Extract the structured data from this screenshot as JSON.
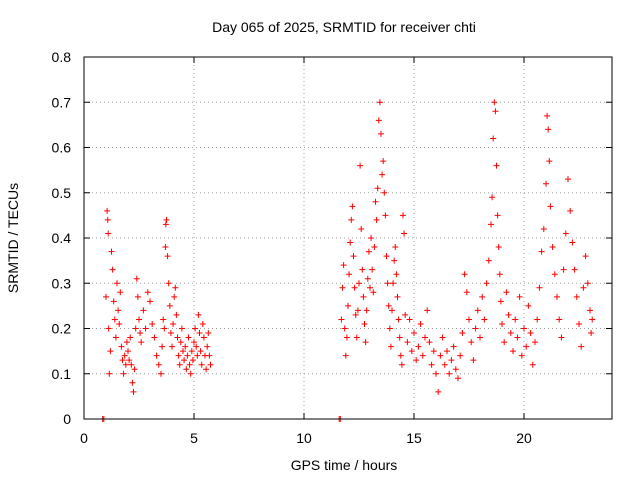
{
  "chart_data": {
    "type": "scatter",
    "title": "Day 065 of 2025, SRMTID for receiver chti",
    "xlabel": "GPS time / hours",
    "ylabel": "SRMTID / TECUs",
    "xlim": [
      0,
      24
    ],
    "ylim": [
      0,
      0.8
    ],
    "xticks": [
      0,
      5,
      10,
      15,
      20
    ],
    "yticks": [
      0,
      0.1,
      0.2,
      0.3,
      0.4,
      0.5,
      0.6,
      0.7,
      0.8
    ],
    "xtick_labels": [
      "0",
      "5",
      "10",
      "15",
      "20"
    ],
    "ytick_labels": [
      "0",
      "0.1",
      "0.2",
      "0.3",
      "0.4",
      "0.5",
      "0.6",
      "0.7",
      "0.8"
    ],
    "grid": true,
    "marker": "+",
    "color": "#ff0000",
    "series": [
      {
        "name": "SRMTID",
        "points": [
          [
            0.85,
            0.0
          ],
          [
            0.9,
            0.0
          ],
          [
            1.0,
            0.27
          ],
          [
            1.05,
            0.46
          ],
          [
            1.08,
            0.44
          ],
          [
            1.1,
            0.41
          ],
          [
            1.12,
            0.2
          ],
          [
            1.15,
            0.1
          ],
          [
            1.2,
            0.15
          ],
          [
            1.25,
            0.37
          ],
          [
            1.3,
            0.33
          ],
          [
            1.35,
            0.26
          ],
          [
            1.4,
            0.22
          ],
          [
            1.45,
            0.18
          ],
          [
            1.5,
            0.3
          ],
          [
            1.55,
            0.24
          ],
          [
            1.6,
            0.21
          ],
          [
            1.65,
            0.28
          ],
          [
            1.7,
            0.16
          ],
          [
            1.75,
            0.13
          ],
          [
            1.8,
            0.1
          ],
          [
            1.85,
            0.14
          ],
          [
            1.9,
            0.12
          ],
          [
            1.95,
            0.17
          ],
          [
            2.0,
            0.15
          ],
          [
            2.05,
            0.13
          ],
          [
            2.1,
            0.18
          ],
          [
            2.15,
            0.12
          ],
          [
            2.2,
            0.08
          ],
          [
            2.25,
            0.06
          ],
          [
            2.3,
            0.11
          ],
          [
            2.35,
            0.2
          ],
          [
            2.4,
            0.31
          ],
          [
            2.45,
            0.27
          ],
          [
            2.5,
            0.22
          ],
          [
            2.55,
            0.19
          ],
          [
            2.6,
            0.17
          ],
          [
            2.7,
            0.24
          ],
          [
            2.8,
            0.2
          ],
          [
            2.9,
            0.28
          ],
          [
            3.0,
            0.26
          ],
          [
            3.1,
            0.21
          ],
          [
            3.2,
            0.18
          ],
          [
            3.3,
            0.14
          ],
          [
            3.4,
            0.12
          ],
          [
            3.5,
            0.1
          ],
          [
            3.55,
            0.16
          ],
          [
            3.6,
            0.22
          ],
          [
            3.65,
            0.2
          ],
          [
            3.7,
            0.38
          ],
          [
            3.72,
            0.43
          ],
          [
            3.75,
            0.44
          ],
          [
            3.8,
            0.36
          ],
          [
            3.85,
            0.3
          ],
          [
            3.9,
            0.25
          ],
          [
            3.95,
            0.19
          ],
          [
            4.0,
            0.16
          ],
          [
            4.05,
            0.21
          ],
          [
            4.1,
            0.27
          ],
          [
            4.15,
            0.29
          ],
          [
            4.2,
            0.23
          ],
          [
            4.25,
            0.18
          ],
          [
            4.3,
            0.14
          ],
          [
            4.35,
            0.12
          ],
          [
            4.4,
            0.17
          ],
          [
            4.45,
            0.2
          ],
          [
            4.5,
            0.15
          ],
          [
            4.55,
            0.13
          ],
          [
            4.6,
            0.16
          ],
          [
            4.65,
            0.11
          ],
          [
            4.7,
            0.14
          ],
          [
            4.75,
            0.18
          ],
          [
            4.8,
            0.12
          ],
          [
            4.85,
            0.1
          ],
          [
            4.9,
            0.15
          ],
          [
            4.95,
            0.13
          ],
          [
            5.0,
            0.17
          ],
          [
            5.05,
            0.2
          ],
          [
            5.1,
            0.16
          ],
          [
            5.15,
            0.14
          ],
          [
            5.2,
            0.23
          ],
          [
            5.25,
            0.19
          ],
          [
            5.3,
            0.15
          ],
          [
            5.35,
            0.12
          ],
          [
            5.4,
            0.21
          ],
          [
            5.45,
            0.18
          ],
          [
            5.5,
            0.14
          ],
          [
            5.55,
            0.11
          ],
          [
            5.6,
            0.16
          ],
          [
            5.65,
            0.19
          ],
          [
            5.7,
            0.14
          ],
          [
            5.75,
            0.12
          ],
          [
            11.6,
            0.0
          ],
          [
            11.65,
            0.0
          ],
          [
            11.7,
            0.22
          ],
          [
            11.75,
            0.29
          ],
          [
            11.8,
            0.34
          ],
          [
            11.85,
            0.2
          ],
          [
            11.9,
            0.14
          ],
          [
            11.95,
            0.18
          ],
          [
            12.0,
            0.25
          ],
          [
            12.05,
            0.32
          ],
          [
            12.1,
            0.39
          ],
          [
            12.15,
            0.44
          ],
          [
            12.2,
            0.47
          ],
          [
            12.25,
            0.36
          ],
          [
            12.3,
            0.29
          ],
          [
            12.35,
            0.23
          ],
          [
            12.4,
            0.18
          ],
          [
            12.45,
            0.24
          ],
          [
            12.5,
            0.3
          ],
          [
            12.55,
            0.56
          ],
          [
            12.6,
            0.42
          ],
          [
            12.65,
            0.33
          ],
          [
            12.7,
            0.27
          ],
          [
            12.75,
            0.21
          ],
          [
            12.8,
            0.17
          ],
          [
            12.85,
            0.24
          ],
          [
            12.9,
            0.31
          ],
          [
            12.95,
            0.37
          ],
          [
            13.0,
            0.29
          ],
          [
            13.05,
            0.4
          ],
          [
            13.1,
            0.33
          ],
          [
            13.15,
            0.28
          ],
          [
            13.2,
            0.38
          ],
          [
            13.25,
            0.48
          ],
          [
            13.3,
            0.44
          ],
          [
            13.35,
            0.51
          ],
          [
            13.4,
            0.66
          ],
          [
            13.45,
            0.7
          ],
          [
            13.5,
            0.63
          ],
          [
            13.55,
            0.54
          ],
          [
            13.6,
            0.57
          ],
          [
            13.65,
            0.5
          ],
          [
            13.7,
            0.45
          ],
          [
            13.75,
            0.36
          ],
          [
            13.8,
            0.3
          ],
          [
            13.85,
            0.25
          ],
          [
            13.9,
            0.2
          ],
          [
            13.95,
            0.16
          ],
          [
            14.0,
            0.24
          ],
          [
            14.05,
            0.3
          ],
          [
            14.1,
            0.35
          ],
          [
            14.15,
            0.38
          ],
          [
            14.2,
            0.32
          ],
          [
            14.25,
            0.27
          ],
          [
            14.3,
            0.22
          ],
          [
            14.35,
            0.18
          ],
          [
            14.4,
            0.14
          ],
          [
            14.45,
            0.12
          ],
          [
            14.5,
            0.45
          ],
          [
            14.55,
            0.41
          ],
          [
            14.6,
            0.23
          ],
          [
            14.7,
            0.17
          ],
          [
            14.8,
            0.22
          ],
          [
            14.9,
            0.15
          ],
          [
            15.0,
            0.19
          ],
          [
            15.1,
            0.13
          ],
          [
            15.2,
            0.16
          ],
          [
            15.3,
            0.21
          ],
          [
            15.4,
            0.14
          ],
          [
            15.5,
            0.18
          ],
          [
            15.6,
            0.24
          ],
          [
            15.7,
            0.17
          ],
          [
            15.8,
            0.12
          ],
          [
            15.9,
            0.15
          ],
          [
            16.0,
            0.1
          ],
          [
            16.1,
            0.06
          ],
          [
            16.2,
            0.14
          ],
          [
            16.3,
            0.18
          ],
          [
            16.4,
            0.12
          ],
          [
            16.5,
            0.15
          ],
          [
            16.6,
            0.1
          ],
          [
            16.7,
            0.13
          ],
          [
            16.8,
            0.16
          ],
          [
            16.9,
            0.11
          ],
          [
            17.0,
            0.09
          ],
          [
            17.1,
            0.14
          ],
          [
            17.2,
            0.19
          ],
          [
            17.3,
            0.32
          ],
          [
            17.4,
            0.28
          ],
          [
            17.5,
            0.22
          ],
          [
            17.6,
            0.17
          ],
          [
            17.7,
            0.13
          ],
          [
            17.8,
            0.2
          ],
          [
            17.9,
            0.24
          ],
          [
            18.0,
            0.18
          ],
          [
            18.1,
            0.27
          ],
          [
            18.2,
            0.22
          ],
          [
            18.3,
            0.3
          ],
          [
            18.4,
            0.35
          ],
          [
            18.5,
            0.43
          ],
          [
            18.55,
            0.49
          ],
          [
            18.6,
            0.62
          ],
          [
            18.65,
            0.7
          ],
          [
            18.7,
            0.68
          ],
          [
            18.75,
            0.56
          ],
          [
            18.8,
            0.45
          ],
          [
            18.85,
            0.38
          ],
          [
            18.9,
            0.32
          ],
          [
            18.95,
            0.26
          ],
          [
            19.0,
            0.21
          ],
          [
            19.1,
            0.17
          ],
          [
            19.2,
            0.28
          ],
          [
            19.3,
            0.23
          ],
          [
            19.4,
            0.19
          ],
          [
            19.5,
            0.15
          ],
          [
            19.6,
            0.22
          ],
          [
            19.7,
            0.18
          ],
          [
            19.8,
            0.27
          ],
          [
            19.9,
            0.14
          ],
          [
            20.0,
            0.2
          ],
          [
            20.1,
            0.16
          ],
          [
            20.2,
            0.25
          ],
          [
            20.3,
            0.19
          ],
          [
            20.4,
            0.12
          ],
          [
            20.5,
            0.17
          ],
          [
            20.6,
            0.22
          ],
          [
            20.7,
            0.29
          ],
          [
            20.8,
            0.37
          ],
          [
            20.9,
            0.42
          ],
          [
            21.0,
            0.52
          ],
          [
            21.05,
            0.67
          ],
          [
            21.1,
            0.64
          ],
          [
            21.15,
            0.57
          ],
          [
            21.2,
            0.47
          ],
          [
            21.3,
            0.38
          ],
          [
            21.4,
            0.32
          ],
          [
            21.5,
            0.27
          ],
          [
            21.6,
            0.22
          ],
          [
            21.7,
            0.18
          ],
          [
            21.8,
            0.33
          ],
          [
            21.9,
            0.41
          ],
          [
            22.0,
            0.53
          ],
          [
            22.1,
            0.46
          ],
          [
            22.2,
            0.39
          ],
          [
            22.3,
            0.33
          ],
          [
            22.4,
            0.27
          ],
          [
            22.5,
            0.21
          ],
          [
            22.6,
            0.16
          ],
          [
            22.7,
            0.29
          ],
          [
            22.8,
            0.36
          ],
          [
            22.9,
            0.3
          ],
          [
            23.0,
            0.24
          ],
          [
            23.05,
            0.19
          ],
          [
            23.1,
            0.22
          ]
        ]
      }
    ]
  }
}
